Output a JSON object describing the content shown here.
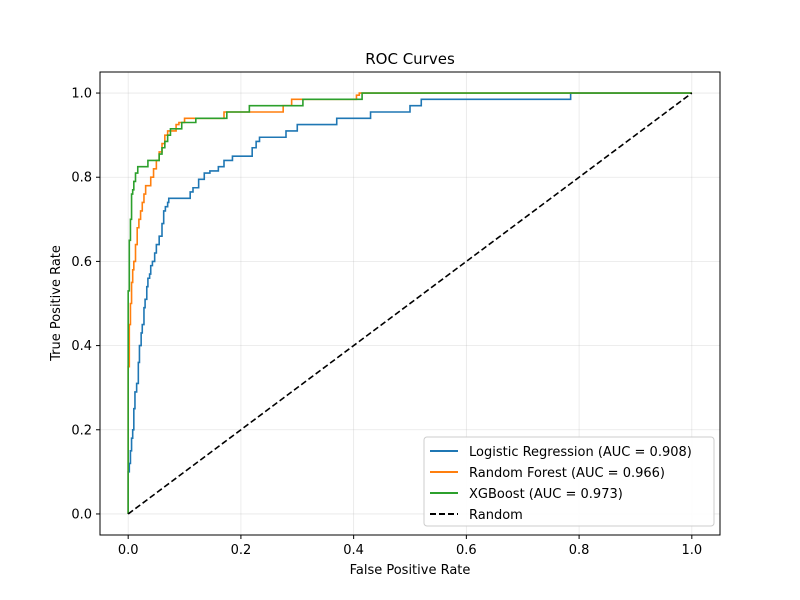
{
  "chart_data": {
    "type": "line",
    "title": "ROC Curves",
    "xlabel": "False Positive Rate",
    "ylabel": "True Positive Rate",
    "xlim": [
      -0.05,
      1.05
    ],
    "ylim": [
      -0.05,
      1.05
    ],
    "grid": true,
    "legend_position": "lower-right",
    "xticks": [
      0.0,
      0.2,
      0.4,
      0.6,
      0.8,
      1.0
    ],
    "xtick_labels": [
      "0.0",
      "0.2",
      "0.4",
      "0.6",
      "0.8",
      "1.0"
    ],
    "yticks": [
      0.0,
      0.2,
      0.4,
      0.6,
      0.8,
      1.0
    ],
    "ytick_labels": [
      "0.0",
      "0.2",
      "0.4",
      "0.6",
      "0.8",
      "1.0"
    ],
    "series": [
      {
        "name": "Logistic Regression (AUC = 0.908)",
        "color": "#1f77b4",
        "style": "solid",
        "x": [
          0.0,
          0.0,
          0.002,
          0.002,
          0.004,
          0.004,
          0.006,
          0.006,
          0.008,
          0.008,
          0.01,
          0.01,
          0.012,
          0.012,
          0.015,
          0.015,
          0.018,
          0.018,
          0.02,
          0.02,
          0.023,
          0.023,
          0.025,
          0.025,
          0.028,
          0.028,
          0.03,
          0.03,
          0.033,
          0.033,
          0.035,
          0.035,
          0.038,
          0.038,
          0.04,
          0.04,
          0.043,
          0.043,
          0.047,
          0.047,
          0.05,
          0.05,
          0.055,
          0.055,
          0.06,
          0.06,
          0.063,
          0.063,
          0.066,
          0.066,
          0.07,
          0.07,
          0.072,
          0.072,
          0.075,
          0.075,
          0.082,
          0.082,
          0.11,
          0.11,
          0.115,
          0.115,
          0.125,
          0.125,
          0.135,
          0.135,
          0.145,
          0.145,
          0.16,
          0.16,
          0.17,
          0.17,
          0.185,
          0.185,
          0.22,
          0.22,
          0.227,
          0.227,
          0.233,
          0.233,
          0.28,
          0.28,
          0.3,
          0.3,
          0.32,
          0.32,
          0.37,
          0.37,
          0.43,
          0.43,
          0.5,
          0.5,
          0.52,
          0.52,
          0.785,
          0.785,
          1.0
        ],
        "y": [
          0.0,
          0.1,
          0.1,
          0.12,
          0.12,
          0.15,
          0.15,
          0.18,
          0.18,
          0.2,
          0.2,
          0.25,
          0.25,
          0.29,
          0.29,
          0.31,
          0.31,
          0.36,
          0.36,
          0.4,
          0.4,
          0.43,
          0.43,
          0.45,
          0.45,
          0.49,
          0.49,
          0.51,
          0.51,
          0.54,
          0.54,
          0.56,
          0.56,
          0.57,
          0.57,
          0.59,
          0.59,
          0.6,
          0.6,
          0.62,
          0.62,
          0.64,
          0.64,
          0.66,
          0.66,
          0.69,
          0.69,
          0.72,
          0.72,
          0.73,
          0.73,
          0.74,
          0.74,
          0.75,
          0.75,
          0.75,
          0.75,
          0.75,
          0.75,
          0.765,
          0.765,
          0.775,
          0.775,
          0.795,
          0.795,
          0.81,
          0.81,
          0.815,
          0.815,
          0.825,
          0.825,
          0.84,
          0.84,
          0.85,
          0.85,
          0.87,
          0.87,
          0.885,
          0.885,
          0.895,
          0.895,
          0.91,
          0.91,
          0.925,
          0.925,
          0.925,
          0.925,
          0.94,
          0.94,
          0.955,
          0.955,
          0.97,
          0.97,
          0.985,
          0.985,
          1.0,
          1.0
        ]
      },
      {
        "name": "Random Forest (AUC = 0.966)",
        "color": "#ff7f0e",
        "style": "solid",
        "x": [
          0.0,
          0.0,
          0.002,
          0.002,
          0.004,
          0.004,
          0.006,
          0.006,
          0.008,
          0.008,
          0.01,
          0.01,
          0.013,
          0.013,
          0.016,
          0.016,
          0.019,
          0.019,
          0.022,
          0.022,
          0.025,
          0.025,
          0.028,
          0.028,
          0.031,
          0.031,
          0.04,
          0.04,
          0.045,
          0.045,
          0.05,
          0.05,
          0.055,
          0.055,
          0.06,
          0.06,
          0.065,
          0.065,
          0.07,
          0.07,
          0.08,
          0.08,
          0.085,
          0.085,
          0.09,
          0.09,
          0.1,
          0.1,
          0.17,
          0.17,
          0.275,
          0.275,
          0.29,
          0.29,
          0.405,
          0.405,
          0.41,
          0.41,
          1.0
        ],
        "y": [
          0.0,
          0.35,
          0.35,
          0.45,
          0.45,
          0.5,
          0.5,
          0.55,
          0.55,
          0.58,
          0.58,
          0.6,
          0.6,
          0.64,
          0.64,
          0.68,
          0.68,
          0.7,
          0.7,
          0.72,
          0.72,
          0.74,
          0.74,
          0.76,
          0.76,
          0.78,
          0.78,
          0.8,
          0.8,
          0.82,
          0.82,
          0.84,
          0.84,
          0.86,
          0.86,
          0.88,
          0.88,
          0.9,
          0.9,
          0.91,
          0.91,
          0.91,
          0.91,
          0.925,
          0.925,
          0.93,
          0.93,
          0.94,
          0.94,
          0.955,
          0.955,
          0.97,
          0.97,
          0.985,
          0.985,
          0.995,
          0.995,
          1.0,
          1.0
        ]
      },
      {
        "name": "XGBoost (AUC = 0.973)",
        "color": "#2ca02c",
        "style": "solid",
        "x": [
          0.0,
          0.0,
          0.002,
          0.002,
          0.004,
          0.004,
          0.006,
          0.006,
          0.008,
          0.008,
          0.01,
          0.01,
          0.013,
          0.013,
          0.017,
          0.017,
          0.035,
          0.035,
          0.055,
          0.055,
          0.06,
          0.06,
          0.065,
          0.065,
          0.07,
          0.07,
          0.075,
          0.075,
          0.095,
          0.095,
          0.12,
          0.12,
          0.175,
          0.175,
          0.215,
          0.215,
          0.31,
          0.31,
          0.415,
          0.415,
          0.785,
          0.785,
          1.0
        ],
        "y": [
          0.0,
          0.53,
          0.53,
          0.65,
          0.65,
          0.7,
          0.7,
          0.76,
          0.76,
          0.77,
          0.77,
          0.79,
          0.79,
          0.81,
          0.81,
          0.825,
          0.825,
          0.84,
          0.84,
          0.855,
          0.855,
          0.87,
          0.87,
          0.885,
          0.885,
          0.9,
          0.9,
          0.915,
          0.915,
          0.93,
          0.93,
          0.94,
          0.94,
          0.955,
          0.955,
          0.97,
          0.97,
          0.985,
          0.985,
          1.0,
          1.0,
          1.0,
          1.0
        ]
      },
      {
        "name": "Random",
        "color": "#000000",
        "style": "dashed",
        "x": [
          0.0,
          1.0
        ],
        "y": [
          0.0,
          1.0
        ]
      }
    ]
  }
}
